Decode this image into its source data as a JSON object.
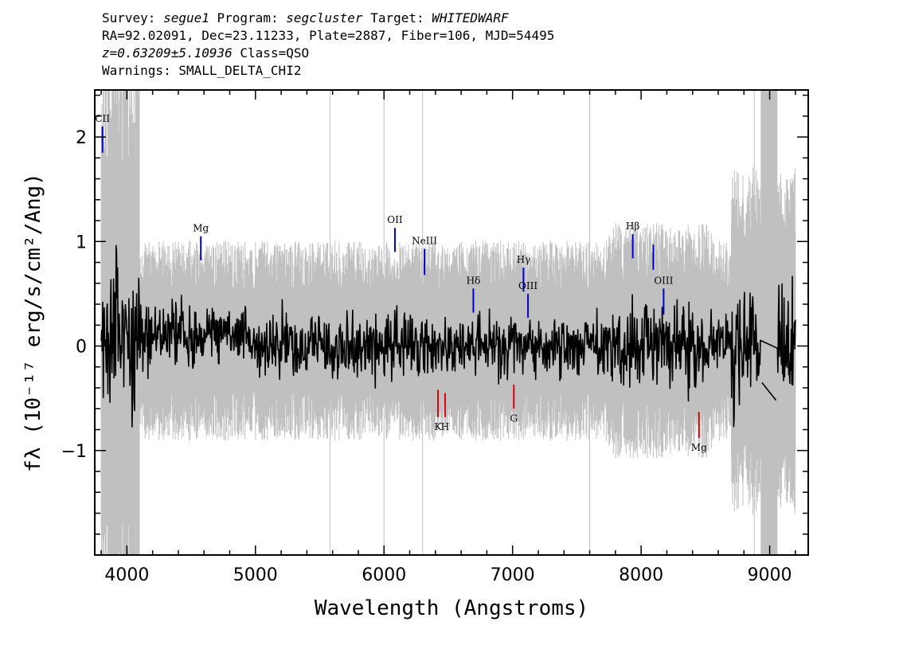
{
  "header": {
    "survey_label": "Survey:",
    "survey": "segue1",
    "program_label": "Program:",
    "program": "segcluster",
    "target_label": "Target:",
    "target": "WHITEDWARF",
    "line2": "RA=92.02091, Dec=23.11233, Plate=2887, Fiber=106, MJD=54495",
    "redshift": "z=0.63209±5.10936",
    "class": "Class=QSO",
    "warnings": "Warnings: SMALL_DELTA_CHI2"
  },
  "chart_data": {
    "type": "line",
    "xlabel": "Wavelength (Angstroms)",
    "ylabel": "fλ (10⁻¹⁷ erg/s/cm²/Ang)",
    "xlim": [
      3750,
      9300
    ],
    "ylim": [
      -2.0,
      2.45
    ],
    "xticks": [
      4000,
      5000,
      6000,
      7000,
      8000,
      9000
    ],
    "yticks": [
      -1,
      0,
      1,
      2
    ],
    "ytick_labels": [
      "−1",
      "0",
      "1",
      "2"
    ],
    "series": [
      {
        "role": "flux",
        "color": "#000000",
        "x_range": [
          3800,
          9200
        ]
      },
      {
        "role": "error",
        "color": "#c0c0c0",
        "x_range": [
          3800,
          9200
        ]
      }
    ],
    "emission_lines": [
      {
        "label": "CII",
        "x": 3810,
        "y_top": 2.1,
        "y_bottom": 1.85
      },
      {
        "label": "Mg",
        "x": 4575,
        "y_top": 1.05,
        "y_bottom": 0.82
      },
      {
        "label": "OII",
        "x": 6085,
        "y_top": 1.13,
        "y_bottom": 0.9
      },
      {
        "label": "NeIII",
        "x": 6315,
        "y_top": 0.93,
        "y_bottom": 0.68
      },
      {
        "label": "Hδ",
        "x": 6695,
        "y_top": 0.55,
        "y_bottom": 0.32
      },
      {
        "label": "Hγ",
        "x": 7085,
        "y_top": 0.75,
        "y_bottom": 0.52
      },
      {
        "label": "OIII",
        "x": 7120,
        "y_top": 0.5,
        "y_bottom": 0.27
      },
      {
        "label": "Hβ",
        "x": 7935,
        "y_top": 1.07,
        "y_bottom": 0.84
      },
      {
        "label": "",
        "x": 8095,
        "y_top": 0.97,
        "y_bottom": 0.73
      },
      {
        "label": "OIII",
        "x": 8175,
        "y_top": 0.55,
        "y_bottom": 0.3
      }
    ],
    "absorption_lines": [
      {
        "label": "K",
        "x": 6420,
        "y_top": -0.42,
        "y_bottom": -0.68
      },
      {
        "label": "H",
        "x": 6475,
        "y_top": -0.45,
        "y_bottom": -0.68
      },
      {
        "label": "G",
        "x": 7010,
        "y_top": -0.37,
        "y_bottom": -0.6
      },
      {
        "label": "Mg",
        "x": 8450,
        "y_top": -0.63,
        "y_bottom": -0.88
      }
    ],
    "masked_band": [
      8930,
      9060
    ],
    "colors": {
      "emission": "#0000cc",
      "absorption": "#dd0000",
      "error": "#c0c0c0",
      "flux": "#000000"
    }
  }
}
